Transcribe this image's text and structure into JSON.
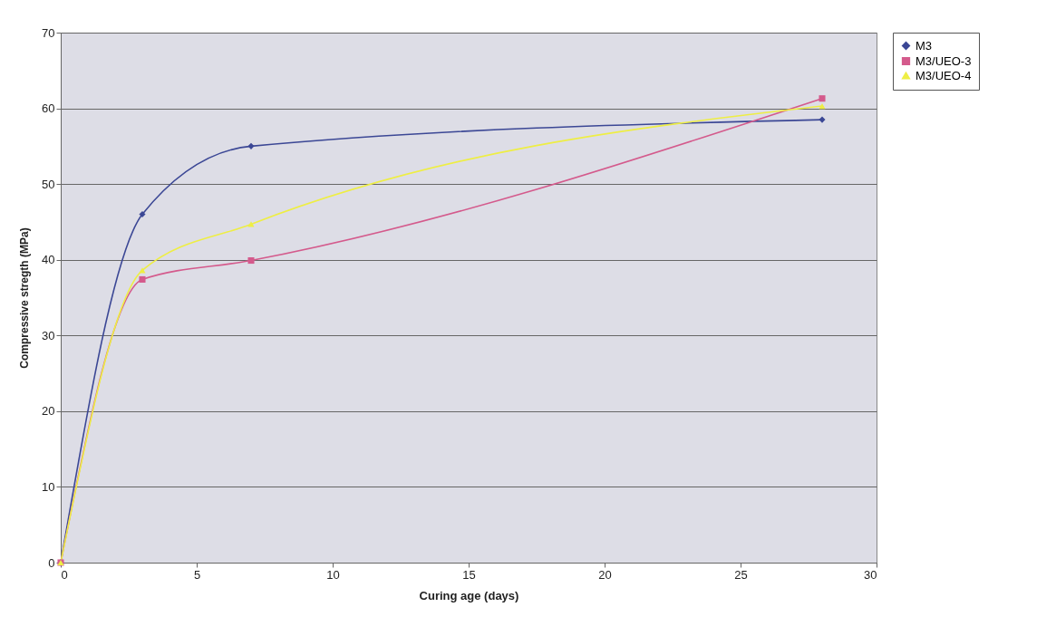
{
  "chart_data": {
    "type": "line",
    "xlabel": "Curing age (days)",
    "ylabel": "Compressive stregth (MPa)",
    "x": [
      0,
      3,
      7,
      28
    ],
    "series": [
      {
        "name": "M3",
        "color": "#3b4795",
        "marker": "diamond",
        "values": [
          0,
          46.0,
          55.0,
          58.5
        ]
      },
      {
        "name": "M3/UEO-3",
        "color": "#d45a8c",
        "marker": "square",
        "values": [
          0,
          37.4,
          39.9,
          61.3
        ]
      },
      {
        "name": "M3/UEO-4",
        "color": "#eeee44",
        "marker": "triangle",
        "values": [
          0,
          38.6,
          44.7,
          60.3
        ]
      }
    ],
    "xlim": [
      0,
      30
    ],
    "xticks": [
      0,
      5,
      10,
      15,
      20,
      25,
      30
    ],
    "ylim": [
      0,
      70
    ],
    "yticks": [
      0,
      10,
      20,
      30,
      40,
      50,
      60,
      70
    ],
    "grid": "y",
    "legend": "right",
    "line_style": "solid"
  }
}
